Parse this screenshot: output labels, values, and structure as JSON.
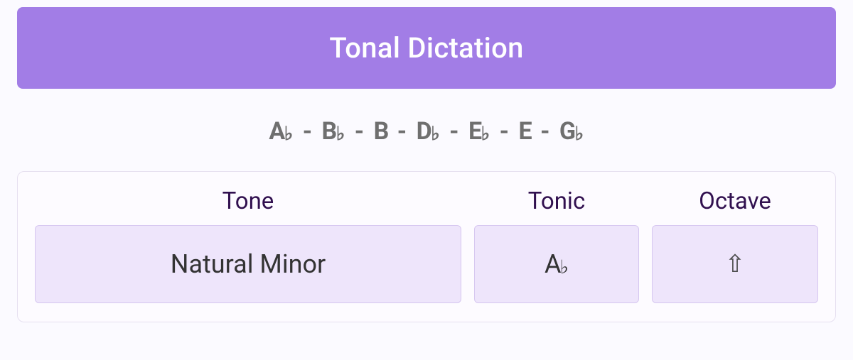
{
  "header": {
    "title": "Tonal Dictation"
  },
  "scale": {
    "notes": [
      {
        "letter": "A",
        "accidental": "♭"
      },
      {
        "letter": "B",
        "accidental": "♭"
      },
      {
        "letter": "B",
        "accidental": ""
      },
      {
        "letter": "D",
        "accidental": "♭"
      },
      {
        "letter": "E",
        "accidental": "♭"
      },
      {
        "letter": "E",
        "accidental": ""
      },
      {
        "letter": "G",
        "accidental": "♭"
      }
    ],
    "separator": "-"
  },
  "panel": {
    "tone": {
      "label": "Tone",
      "value": "Natural Minor"
    },
    "tonic": {
      "label": "Tonic",
      "value_letter": "A",
      "value_accidental": "♭"
    },
    "octave": {
      "label": "Octave",
      "value_glyph": "⇧"
    }
  },
  "colors": {
    "hero_bg": "#a27de6",
    "hero_text": "#ffffff",
    "page_bg": "#fbfaff",
    "panel_border": "#e6e0f0",
    "panel_bg": "#fdfbff",
    "picker_bg": "#eee5fb",
    "picker_border": "#d6c7f0",
    "label_text": "#31104f",
    "scale_text": "#6f6f6f"
  }
}
